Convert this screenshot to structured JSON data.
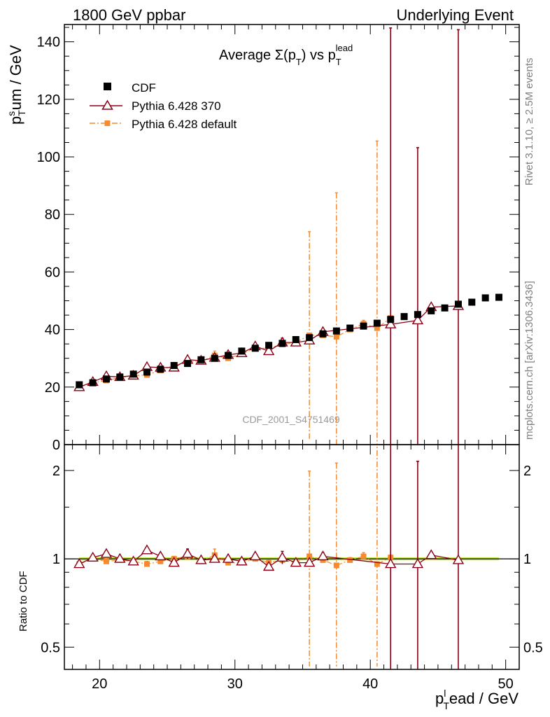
{
  "header": {
    "left": "1800 GeV ppbar",
    "right": "Underlying Event"
  },
  "side_labels": {
    "rivet": "Rivet 3.1.10, ≥ 2.5M events",
    "mcplots": "mcplots.cern.ch [arXiv:1306.3436]"
  },
  "watermark": "CDF_2001_S4751469",
  "chart_data": [
    {
      "type": "scatter",
      "title_main": "Average Σ(p",
      "title_sub1": "T",
      "title_mid": ") vs p",
      "title_sub2": "T",
      "title_sup2": "lead",
      "ylabel_main": "p",
      "ylabel_sup": "s",
      "ylabel_sub": "T",
      "ylabel_rest": "um / GeV",
      "xlim": [
        17.4,
        51
      ],
      "ylim": [
        0,
        146
      ],
      "yticks": [
        0,
        20,
        40,
        60,
        80,
        100,
        120,
        140
      ],
      "legend_position": "top-left",
      "series": [
        {
          "name": "CDF",
          "color": "#000000",
          "marker": "square",
          "x": [
            18.5,
            19.5,
            20.5,
            21.5,
            22.5,
            23.5,
            24.5,
            25.5,
            26.5,
            27.5,
            28.5,
            29.5,
            30.5,
            31.5,
            32.5,
            33.5,
            34.5,
            35.5,
            36.5,
            37.5,
            38.5,
            39.5,
            40.5,
            41.5,
            42.5,
            43.5,
            44.5,
            45.5,
            46.5,
            47.5,
            48.5,
            49.5
          ],
          "y": [
            20.8,
            21.5,
            22.8,
            23.5,
            24.5,
            25.2,
            26.2,
            27.5,
            28.2,
            29.5,
            30.0,
            31.0,
            32.5,
            33.5,
            34.5,
            35.2,
            36.5,
            37.2,
            38.5,
            39.5,
            40.5,
            41.2,
            42.2,
            43.5,
            44.5,
            45.2,
            46.5,
            47.5,
            48.8,
            49.5,
            51.0,
            51.2
          ],
          "yerr": [
            0.6,
            0.6,
            0.6,
            0.6,
            0.6,
            0.6,
            0.6,
            0.6,
            0.6,
            0.6,
            0.6,
            0.6,
            0.6,
            0.6,
            0.6,
            0.6,
            0.6,
            0.6,
            0.6,
            0.6,
            0.6,
            0.6,
            0.6,
            0.6,
            0.6,
            0.6,
            0.6,
            0.6,
            0.6,
            0.6,
            0.6,
            0.6
          ]
        },
        {
          "name": "Pythia 6.428 370",
          "color": "#8b0016",
          "marker": "triangle-open",
          "line": "solid",
          "x": [
            18.5,
            19.5,
            20.5,
            21.5,
            22.5,
            23.5,
            24.5,
            25.5,
            26.5,
            27.5,
            28.5,
            29.5,
            30.5,
            31.5,
            32.5,
            33.5,
            34.5,
            35.5,
            36.5,
            41.5,
            43.5,
            44.5,
            46.5
          ],
          "y": [
            20.0,
            21.8,
            23.8,
            23.5,
            24.0,
            27.0,
            26.8,
            26.8,
            29.5,
            29.2,
            30.2,
            31.2,
            31.8,
            34.2,
            32.5,
            35.5,
            35.5,
            36.2,
            39.2,
            41.8,
            43.2,
            47.8,
            48.2
          ],
          "yerr_up": [
            0.5,
            0.5,
            0.5,
            0.5,
            0.5,
            0.5,
            0.5,
            0.5,
            1.0,
            0.5,
            0.5,
            0.5,
            0.5,
            0.5,
            0.5,
            1.5,
            0.5,
            0.5,
            1.0,
            103,
            60,
            0.5,
            96
          ],
          "yerr_down": [
            0.5,
            0.5,
            0.5,
            0.5,
            0.5,
            0.5,
            0.5,
            0.5,
            1.0,
            0.5,
            0.5,
            0.5,
            0.5,
            0.5,
            0.5,
            1.5,
            0.5,
            0.5,
            1.0,
            42,
            43,
            0.5,
            49
          ]
        },
        {
          "name": "Pythia 6.428 default",
          "color": "#f58a2e",
          "marker": "square-small",
          "line": "dashdot",
          "x": [
            18.5,
            19.5,
            20.5,
            21.5,
            22.5,
            23.5,
            24.5,
            25.5,
            26.5,
            27.5,
            28.5,
            29.5,
            30.5,
            31.5,
            32.5,
            33.5,
            34.5,
            35.5,
            36.5,
            37.5,
            38.5,
            39.5,
            40.5,
            41.5
          ],
          "y": [
            20.0,
            21.5,
            22.3,
            23.3,
            24.0,
            24.2,
            25.8,
            27.5,
            28.8,
            29.0,
            31.0,
            30.0,
            31.5,
            33.5,
            33.5,
            34.8,
            35.5,
            38.0,
            38.0,
            37.5,
            40.0,
            42.0,
            40.5,
            44.0
          ],
          "yerr_up": [
            0.5,
            0.5,
            0.5,
            0.5,
            0.5,
            0.5,
            0.5,
            0.5,
            0.5,
            0.5,
            1.5,
            0.5,
            0.5,
            0.5,
            0.5,
            0.5,
            0.5,
            36,
            0.5,
            50,
            0.5,
            1.2,
            65,
            0.5
          ],
          "yerr_down": [
            0.5,
            0.5,
            0.5,
            0.5,
            0.5,
            0.5,
            0.5,
            0.5,
            0.5,
            0.5,
            1.5,
            0.5,
            0.5,
            0.5,
            0.5,
            0.5,
            0.5,
            36,
            0.5,
            37.5,
            0.5,
            1.2,
            40.5,
            0.5
          ]
        }
      ]
    },
    {
      "type": "scatter",
      "ylabel": "Ratio to CDF",
      "xlabel_main": "p",
      "xlabel_sup": "l",
      "xlabel_sub": "T",
      "xlabel_rest": "ead / GeV",
      "xlim": [
        17.4,
        51
      ],
      "xticks": [
        20,
        30,
        40,
        50
      ],
      "ylim": [
        0.42,
        2.45
      ],
      "ylog": true,
      "yticks": [
        0.5,
        1,
        2
      ],
      "reference_band_color": "#c8f04a",
      "series": [
        {
          "name": "Pythia 6.428 370",
          "color": "#8b0016",
          "x": [
            18.5,
            19.5,
            20.5,
            21.5,
            22.5,
            23.5,
            24.5,
            25.5,
            26.5,
            27.5,
            28.5,
            29.5,
            30.5,
            31.5,
            32.5,
            33.5,
            34.5,
            35.5,
            36.5,
            41.5,
            43.5,
            44.5,
            46.5
          ],
          "y": [
            0.96,
            1.01,
            1.04,
            1.0,
            0.98,
            1.07,
            1.02,
            0.97,
            1.04,
            0.99,
            1.0,
            1.0,
            0.98,
            1.02,
            0.94,
            1.01,
            0.97,
            0.97,
            1.02,
            0.96,
            0.96,
            1.03,
            0.99
          ],
          "yerr_up": [
            0.02,
            0.02,
            0.02,
            0.02,
            0.02,
            0.02,
            0.02,
            0.02,
            0.04,
            0.02,
            0.02,
            0.02,
            0.02,
            0.02,
            0.02,
            0.05,
            0.02,
            0.02,
            0.03,
            2.5,
            1.19,
            0.02,
            2.5
          ],
          "yerr_down": [
            0.02,
            0.02,
            0.02,
            0.02,
            0.02,
            0.02,
            0.02,
            0.02,
            0.04,
            0.02,
            0.02,
            0.02,
            0.02,
            0.02,
            0.02,
            0.05,
            0.02,
            0.02,
            0.03,
            0.6,
            0.6,
            0.02,
            0.6
          ]
        },
        {
          "name": "Pythia 6.428 default",
          "color": "#f58a2e",
          "x": [
            18.5,
            19.5,
            20.5,
            21.5,
            22.5,
            23.5,
            24.5,
            25.5,
            26.5,
            27.5,
            28.5,
            29.5,
            30.5,
            31.5,
            32.5,
            33.5,
            34.5,
            35.5,
            36.5,
            37.5,
            38.5,
            39.5,
            40.5,
            41.5
          ],
          "y": [
            0.96,
            1.0,
            0.98,
            0.99,
            0.98,
            0.96,
            0.98,
            1.0,
            1.02,
            0.98,
            1.03,
            0.97,
            0.97,
            1.0,
            0.97,
            0.99,
            0.97,
            1.02,
            0.99,
            0.95,
            0.99,
            1.02,
            0.96,
            1.01
          ],
          "yerr_up": [
            0.02,
            0.02,
            0.02,
            0.02,
            0.02,
            0.02,
            0.02,
            0.02,
            0.02,
            0.02,
            0.05,
            0.02,
            0.02,
            0.02,
            0.02,
            0.02,
            0.02,
            0.97,
            0.02,
            1.17,
            0.02,
            0.03,
            1.6,
            0.02
          ],
          "yerr_down": [
            0.02,
            0.02,
            0.02,
            0.02,
            0.02,
            0.02,
            0.02,
            0.02,
            0.02,
            0.02,
            0.05,
            0.02,
            0.02,
            0.02,
            0.02,
            0.02,
            0.02,
            0.6,
            0.02,
            0.55,
            0.02,
            0.03,
            0.56,
            0.02
          ]
        }
      ]
    }
  ]
}
